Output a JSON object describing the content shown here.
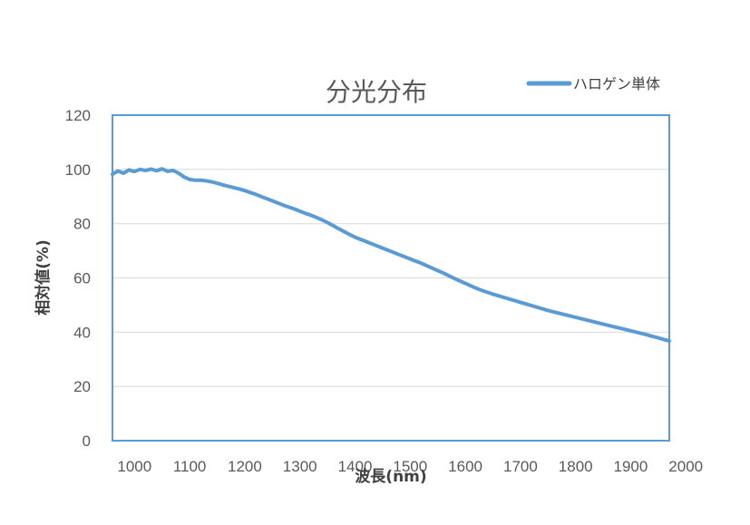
{
  "colors": {
    "frame": "#5b9bd5",
    "grid": "#d9d9d9",
    "text": "#595959"
  },
  "chart_data": {
    "type": "line",
    "title": "分光分布",
    "xlabel": "波長(nm)",
    "ylabel": "相対値(%)",
    "xlim": [
      960,
      1970
    ],
    "ylim": [
      0,
      120
    ],
    "xticks": [
      1000,
      1100,
      1200,
      1300,
      1400,
      1500,
      1600,
      1700,
      1800,
      1900,
      2000
    ],
    "yticks": [
      0,
      20,
      40,
      60,
      80,
      100,
      120
    ],
    "grid": "horizontal",
    "legend": "top-right",
    "series": [
      {
        "name": "ハロゲン単体",
        "color": "#5b9bd5",
        "x": [
          960,
          970,
          980,
          990,
          1000,
          1010,
          1020,
          1030,
          1040,
          1050,
          1060,
          1070,
          1080,
          1090,
          1100,
          1110,
          1120,
          1130,
          1140,
          1150,
          1160,
          1170,
          1180,
          1190,
          1200,
          1210,
          1220,
          1230,
          1240,
          1250,
          1260,
          1270,
          1280,
          1290,
          1300,
          1310,
          1320,
          1330,
          1340,
          1350,
          1360,
          1370,
          1380,
          1390,
          1400,
          1410,
          1420,
          1430,
          1440,
          1450,
          1460,
          1470,
          1480,
          1490,
          1500,
          1510,
          1520,
          1530,
          1540,
          1550,
          1560,
          1570,
          1580,
          1590,
          1600,
          1610,
          1620,
          1630,
          1640,
          1650,
          1660,
          1670,
          1680,
          1690,
          1700,
          1710,
          1720,
          1730,
          1740,
          1750,
          1760,
          1770,
          1780,
          1790,
          1800,
          1810,
          1820,
          1830,
          1840,
          1850,
          1860,
          1870,
          1880,
          1890,
          1900,
          1910,
          1920,
          1930,
          1940,
          1950,
          1960,
          1970
        ],
        "y": [
          98.2,
          99.4,
          98.6,
          99.8,
          99.2,
          100.0,
          99.6,
          100.1,
          99.5,
          100.2,
          99.3,
          99.6,
          98.6,
          97.2,
          96.3,
          96.0,
          96.0,
          95.8,
          95.4,
          94.9,
          94.3,
          93.8,
          93.3,
          92.8,
          92.2,
          91.5,
          90.8,
          90.0,
          89.2,
          88.4,
          87.6,
          86.8,
          86.1,
          85.4,
          84.6,
          83.8,
          83.1,
          82.3,
          81.4,
          80.4,
          79.3,
          78.2,
          77.1,
          76.0,
          75.0,
          74.2,
          73.4,
          72.6,
          71.8,
          71.0,
          70.2,
          69.4,
          68.6,
          67.8,
          67.0,
          66.2,
          65.4,
          64.5,
          63.6,
          62.7,
          61.8,
          60.8,
          59.8,
          58.9,
          58.0,
          57.1,
          56.2,
          55.4,
          54.7,
          54.0,
          53.4,
          52.8,
          52.2,
          51.6,
          51.0,
          50.4,
          49.8,
          49.2,
          48.6,
          48.0,
          47.5,
          47.0,
          46.5,
          46.0,
          45.5,
          45.0,
          44.5,
          44.0,
          43.5,
          43.0,
          42.5,
          42.0,
          41.5,
          41.0,
          40.5,
          40.0,
          39.5,
          39.0,
          38.4,
          37.9,
          37.3,
          36.8
        ]
      }
    ]
  }
}
